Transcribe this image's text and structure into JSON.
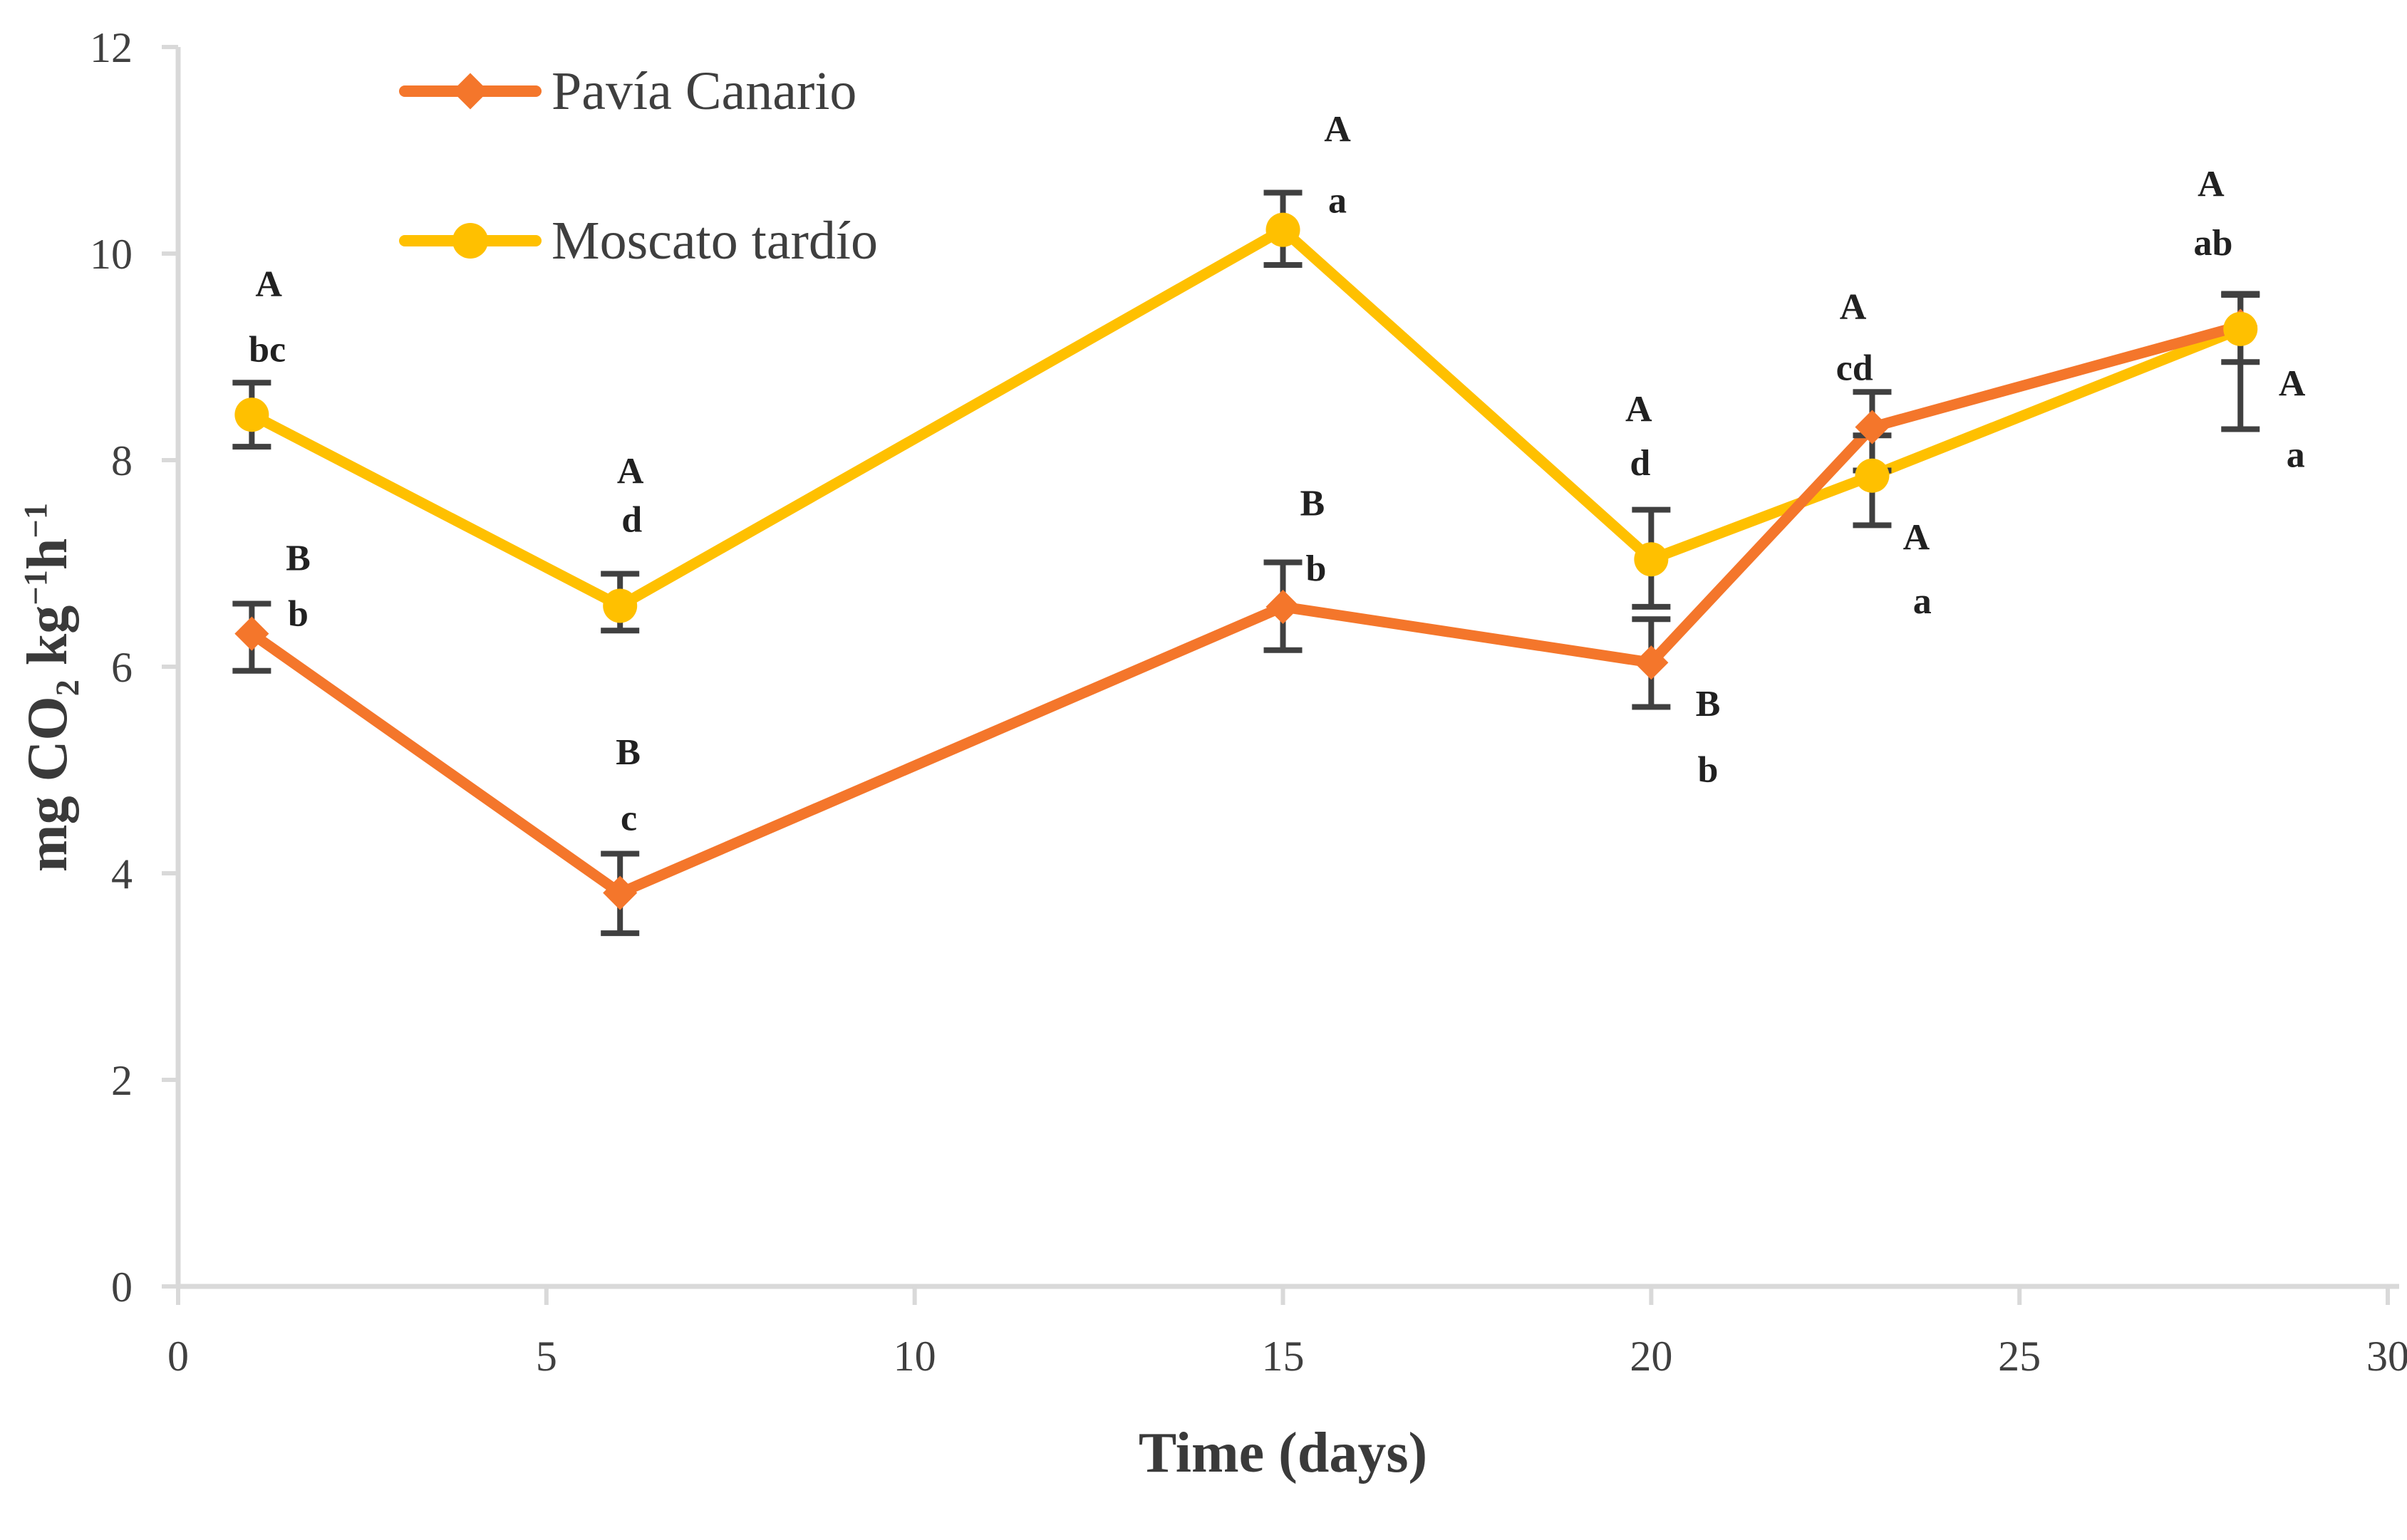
{
  "figure": {
    "background": "#FFFFFF",
    "axis_color": "#D9D9D9",
    "tick_label_color": "#404040",
    "annotation_color": "#212121",
    "error_bar_color": "#404040"
  },
  "legend": {
    "items": [
      {
        "label": "Pavía Canario",
        "color": "#F4762B",
        "marker": "diamond"
      },
      {
        "label": "Moscato tardío",
        "color": "#FFC000",
        "marker": "circle"
      }
    ]
  },
  "axes": {
    "x_title": "Time (days)",
    "y_title_parts": [
      {
        "t": "mg CO"
      },
      {
        "t": "2",
        "sub": true
      },
      {
        "t": " kg"
      },
      {
        "t": "−1",
        "sup": true
      },
      {
        "t": "h"
      },
      {
        "t": "−1",
        "sup": true
      }
    ]
  },
  "chart_data": {
    "type": "line",
    "title": "",
    "xlabel": "Time (days)",
    "ylabel": "mg CO2 kg-1 h-1",
    "xlim": [
      0,
      30
    ],
    "ylim": [
      0,
      12
    ],
    "xticks": [
      0,
      5,
      10,
      15,
      20,
      25,
      30
    ],
    "yticks": [
      0,
      2,
      4,
      6,
      8,
      10,
      12
    ],
    "grid": false,
    "legend_position": "top-left-inside",
    "x": [
      1,
      6,
      15,
      20,
      23,
      28
    ],
    "series": [
      {
        "name": "Pavía Canario",
        "color": "#F4762B",
        "marker": "diamond",
        "values": [
          6.32,
          3.81,
          6.58,
          6.04,
          8.32,
          9.3
        ],
        "err_lo": [
          5.96,
          3.42,
          6.16,
          5.61,
          7.9,
          8.95
        ],
        "err_hi": [
          6.61,
          4.19,
          7.01,
          6.46,
          8.66,
          9.6
        ]
      },
      {
        "name": "Moscato tardío",
        "color": "#FFC000",
        "marker": "circle",
        "values": [
          8.44,
          6.59,
          10.23,
          7.04,
          7.85,
          9.27
        ],
        "err_lo": [
          8.13,
          6.35,
          9.89,
          6.58,
          7.37,
          8.3
        ],
        "err_hi": [
          8.75,
          6.9,
          10.59,
          7.52,
          8.24,
          9.61
        ]
      }
    ],
    "annotations": [
      {
        "text": "A",
        "x": 1.23,
        "y": 9.71
      },
      {
        "text": "bc",
        "x": 1.21,
        "y": 9.08
      },
      {
        "text": "B",
        "x": 1.63,
        "y": 7.06
      },
      {
        "text": "b",
        "x": 1.63,
        "y": 6.52
      },
      {
        "text": "A",
        "x": 6.14,
        "y": 7.9
      },
      {
        "text": "d",
        "x": 6.16,
        "y": 7.43
      },
      {
        "text": "B",
        "x": 6.11,
        "y": 5.18
      },
      {
        "text": "c",
        "x": 6.12,
        "y": 4.54
      },
      {
        "text": "A",
        "x": 15.74,
        "y": 11.21
      },
      {
        "text": "a",
        "x": 15.74,
        "y": 10.52
      },
      {
        "text": "B",
        "x": 15.4,
        "y": 7.59
      },
      {
        "text": "b",
        "x": 15.45,
        "y": 6.96
      },
      {
        "text": "A",
        "x": 19.83,
        "y": 8.5
      },
      {
        "text": "d",
        "x": 19.85,
        "y": 7.98
      },
      {
        "text": "B",
        "x": 20.77,
        "y": 5.65
      },
      {
        "text": "b",
        "x": 20.77,
        "y": 5.01
      },
      {
        "text": "A",
        "x": 22.74,
        "y": 9.49
      },
      {
        "text": "cd",
        "x": 22.76,
        "y": 8.9
      },
      {
        "text": "A",
        "x": 23.6,
        "y": 7.26
      },
      {
        "text": "a",
        "x": 23.68,
        "y": 6.64
      },
      {
        "text": "A",
        "x": 27.6,
        "y": 10.68
      },
      {
        "text": "ab",
        "x": 27.63,
        "y": 10.11
      },
      {
        "text": "A",
        "x": 28.7,
        "y": 8.75
      },
      {
        "text": "a",
        "x": 28.75,
        "y": 8.06
      }
    ]
  }
}
